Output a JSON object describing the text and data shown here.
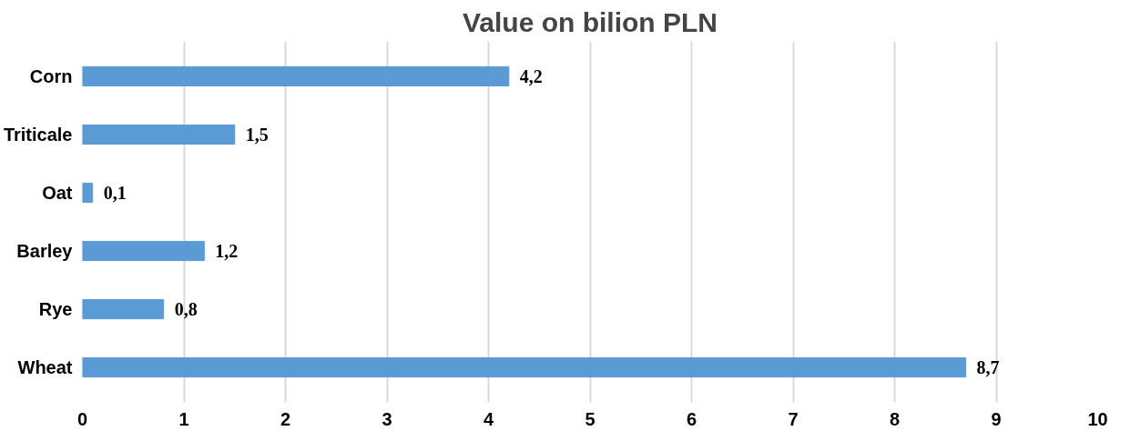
{
  "chart_data": {
    "type": "bar",
    "orientation": "horizontal",
    "title": "Value on bilion PLN",
    "categories": [
      "Corn",
      "Triticale",
      "Oat",
      "Barley",
      "Rye",
      "Wheat"
    ],
    "values": [
      4.2,
      1.5,
      0.1,
      1.2,
      0.8,
      8.7
    ],
    "value_labels": [
      "4,2",
      "1,5",
      "0,1",
      "1,2",
      "0,8",
      "8,7"
    ],
    "color": "#5b9bd5",
    "xlim": [
      0,
      10
    ],
    "xticks": [
      0,
      1,
      2,
      3,
      4,
      5,
      6,
      7,
      8,
      9,
      10
    ],
    "grid": "x"
  }
}
